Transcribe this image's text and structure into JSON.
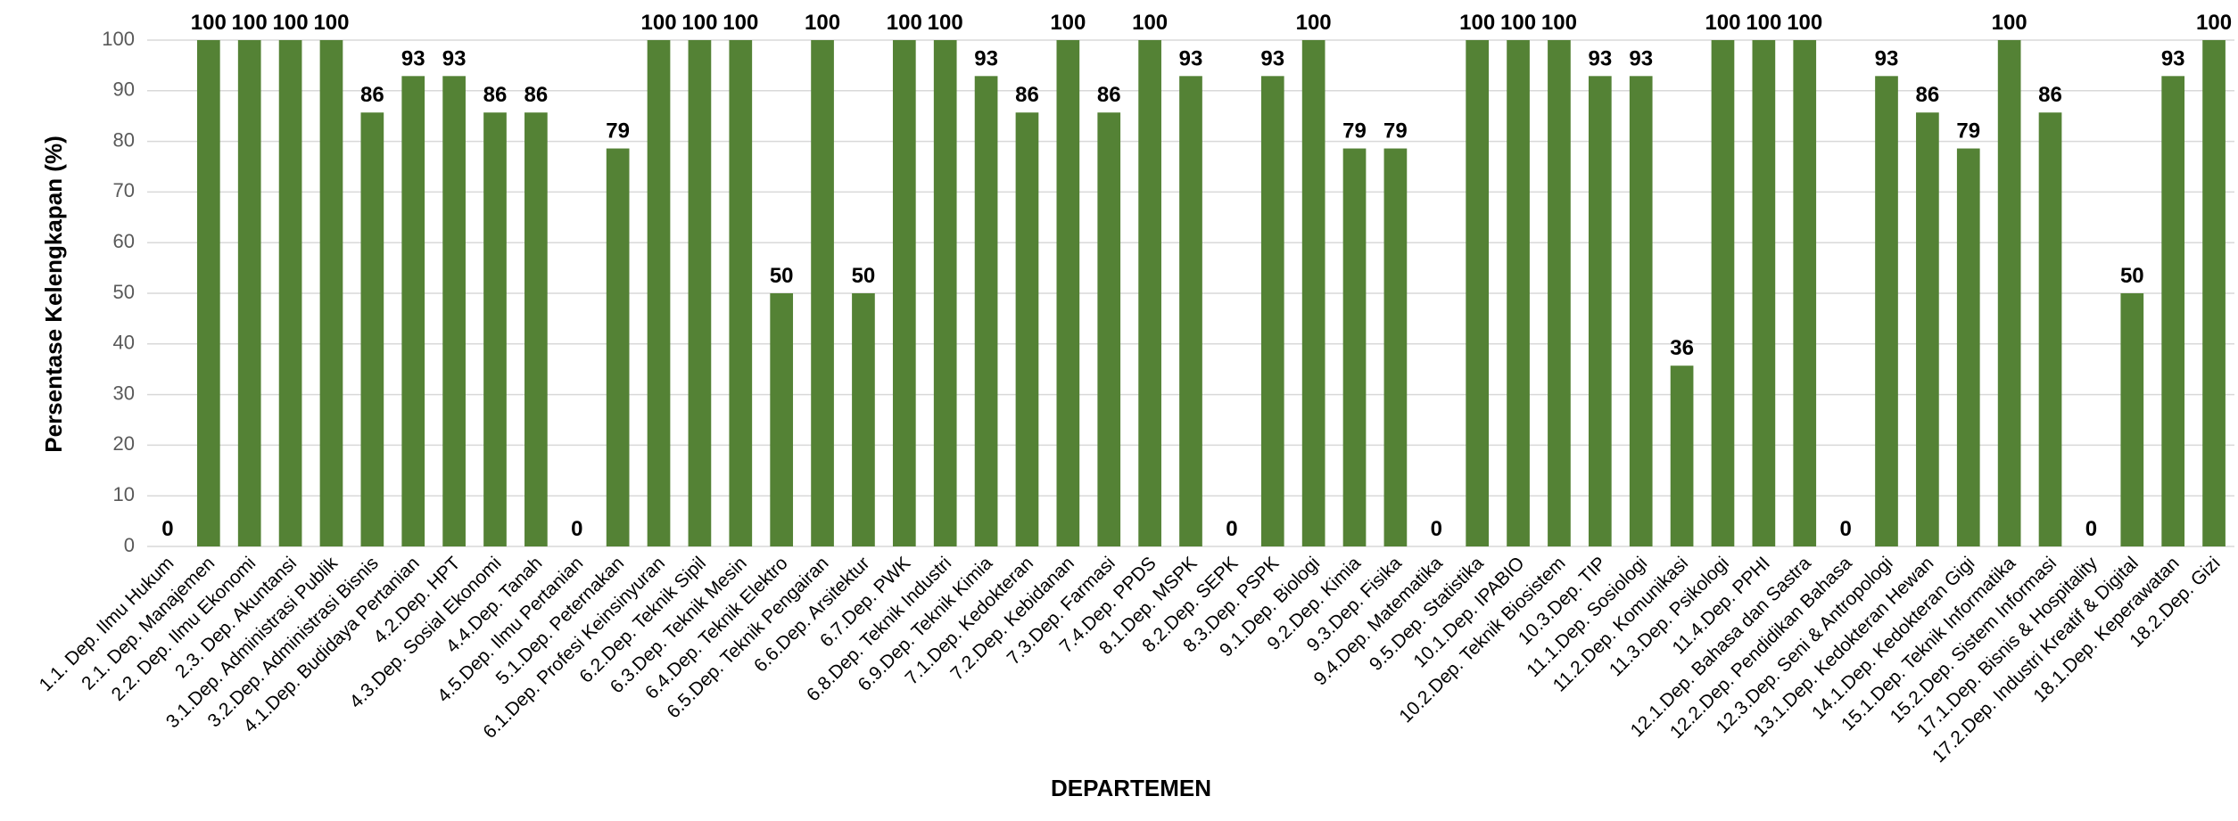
{
  "chart_data": {
    "type": "bar",
    "categories": [
      "1.1. Dep. Ilmu Hukum",
      "2.1. Dep. Manajemen",
      "2.2. Dep. Ilmu Ekonomi",
      "2.3. Dep. Akuntansi",
      "3.1.Dep. Administrasi Publik",
      "3.2.Dep. Administrasi Bisnis",
      "4.1.Dep. Budidaya Pertanian",
      "4.2.Dep. HPT",
      "4.3.Dep. Sosial Ekonomi",
      "4.4.Dep. Tanah",
      "4.5.Dep. Ilmu Pertanian",
      "5.1.Dep. Peternakan",
      "6.1.Dep. Profesi Keinsinyuran",
      "6.2.Dep. Teknik Sipil",
      "6.3.Dep. Teknik Mesin",
      "6.4.Dep. Teknik Elektro",
      "6.5.Dep. Teknik Pengairan",
      "6.6.Dep. Arsitektur",
      "6.7.Dep. PWK",
      "6.8.Dep. Teknik Industri",
      "6.9.Dep. Teknik Kimia",
      "7.1.Dep. Kedokteran",
      "7.2.Dep. Kebidanan",
      "7.3.Dep. Farmasi",
      "7.4.Dep. PPDS",
      "8.1.Dep. MSPK",
      "8.2.Dep. SEPK",
      "8.3.Dep. PSPK",
      "9.1.Dep. Biologi",
      "9.2.Dep. Kimia",
      "9.3.Dep. Fisika",
      "9.4.Dep. Matematika",
      "9.5.Dep. Statistika",
      "10.1.Dep. IPABIO",
      "10.2.Dep. Teknik Biosistem",
      "10.3.Dep. TIP",
      "11.1.Dep. Sosiologi",
      "11.2.Dep. Komunikasi",
      "11.3.Dep. Psikologi",
      "11.4.Dep. PPHI",
      "12.1.Dep. Bahasa dan Sastra",
      "12.2.Dep. Pendidikan Bahasa",
      "12.3.Dep. Seni & Antropologi",
      "13.1.Dep. Kedokteran Hewan",
      "14.1.Dep. Kedokteran Gigi",
      "15.1.Dep. Teknik Informatika",
      "15.2.Dep. Sistem Informasi",
      "17.1.Dep. Bisnis & Hospitality",
      "17.2.Dep. Industri Kreatif & Digital",
      "18.1.Dep. Keperawatan",
      "18.2.Dep. Gizi"
    ],
    "values": [
      0,
      100,
      100,
      100,
      100,
      85.7,
      92.9,
      92.9,
      85.7,
      85.7,
      0,
      78.6,
      100,
      100,
      100,
      50,
      100,
      50,
      100,
      100,
      92.9,
      85.7,
      100,
      85.7,
      100,
      92.9,
      0,
      92.9,
      100,
      78.6,
      78.6,
      0,
      100,
      100,
      100,
      92.9,
      92.9,
      35.7,
      100,
      100,
      100,
      0,
      92.9,
      85.7,
      78.6,
      100,
      85.7,
      0,
      50,
      92.9,
      100
    ],
    "value_labels": [
      "0",
      "100",
      "100",
      "100",
      "100",
      "86",
      "93",
      "93",
      "86",
      "86",
      "0",
      "79",
      "100",
      "100",
      "100",
      "50",
      "100",
      "50",
      "100",
      "100",
      "93",
      "86",
      "100",
      "86",
      "100",
      "93",
      "0",
      "93",
      "100",
      "79",
      "79",
      "0",
      "100",
      "100",
      "100",
      "93",
      "93",
      "36",
      "100",
      "100",
      "100",
      "0",
      "93",
      "86",
      "79",
      "100",
      "86",
      "0",
      "50",
      "93",
      "100"
    ],
    "color": "#548235",
    "xlabel": "DEPARTEMEN",
    "ylabel": "Persentase Kelengkapan (%)",
    "ylim": [
      0,
      100
    ],
    "yticks": [
      0,
      10,
      20,
      30,
      40,
      50,
      60,
      70,
      80,
      90,
      100
    ],
    "grid": true
  }
}
